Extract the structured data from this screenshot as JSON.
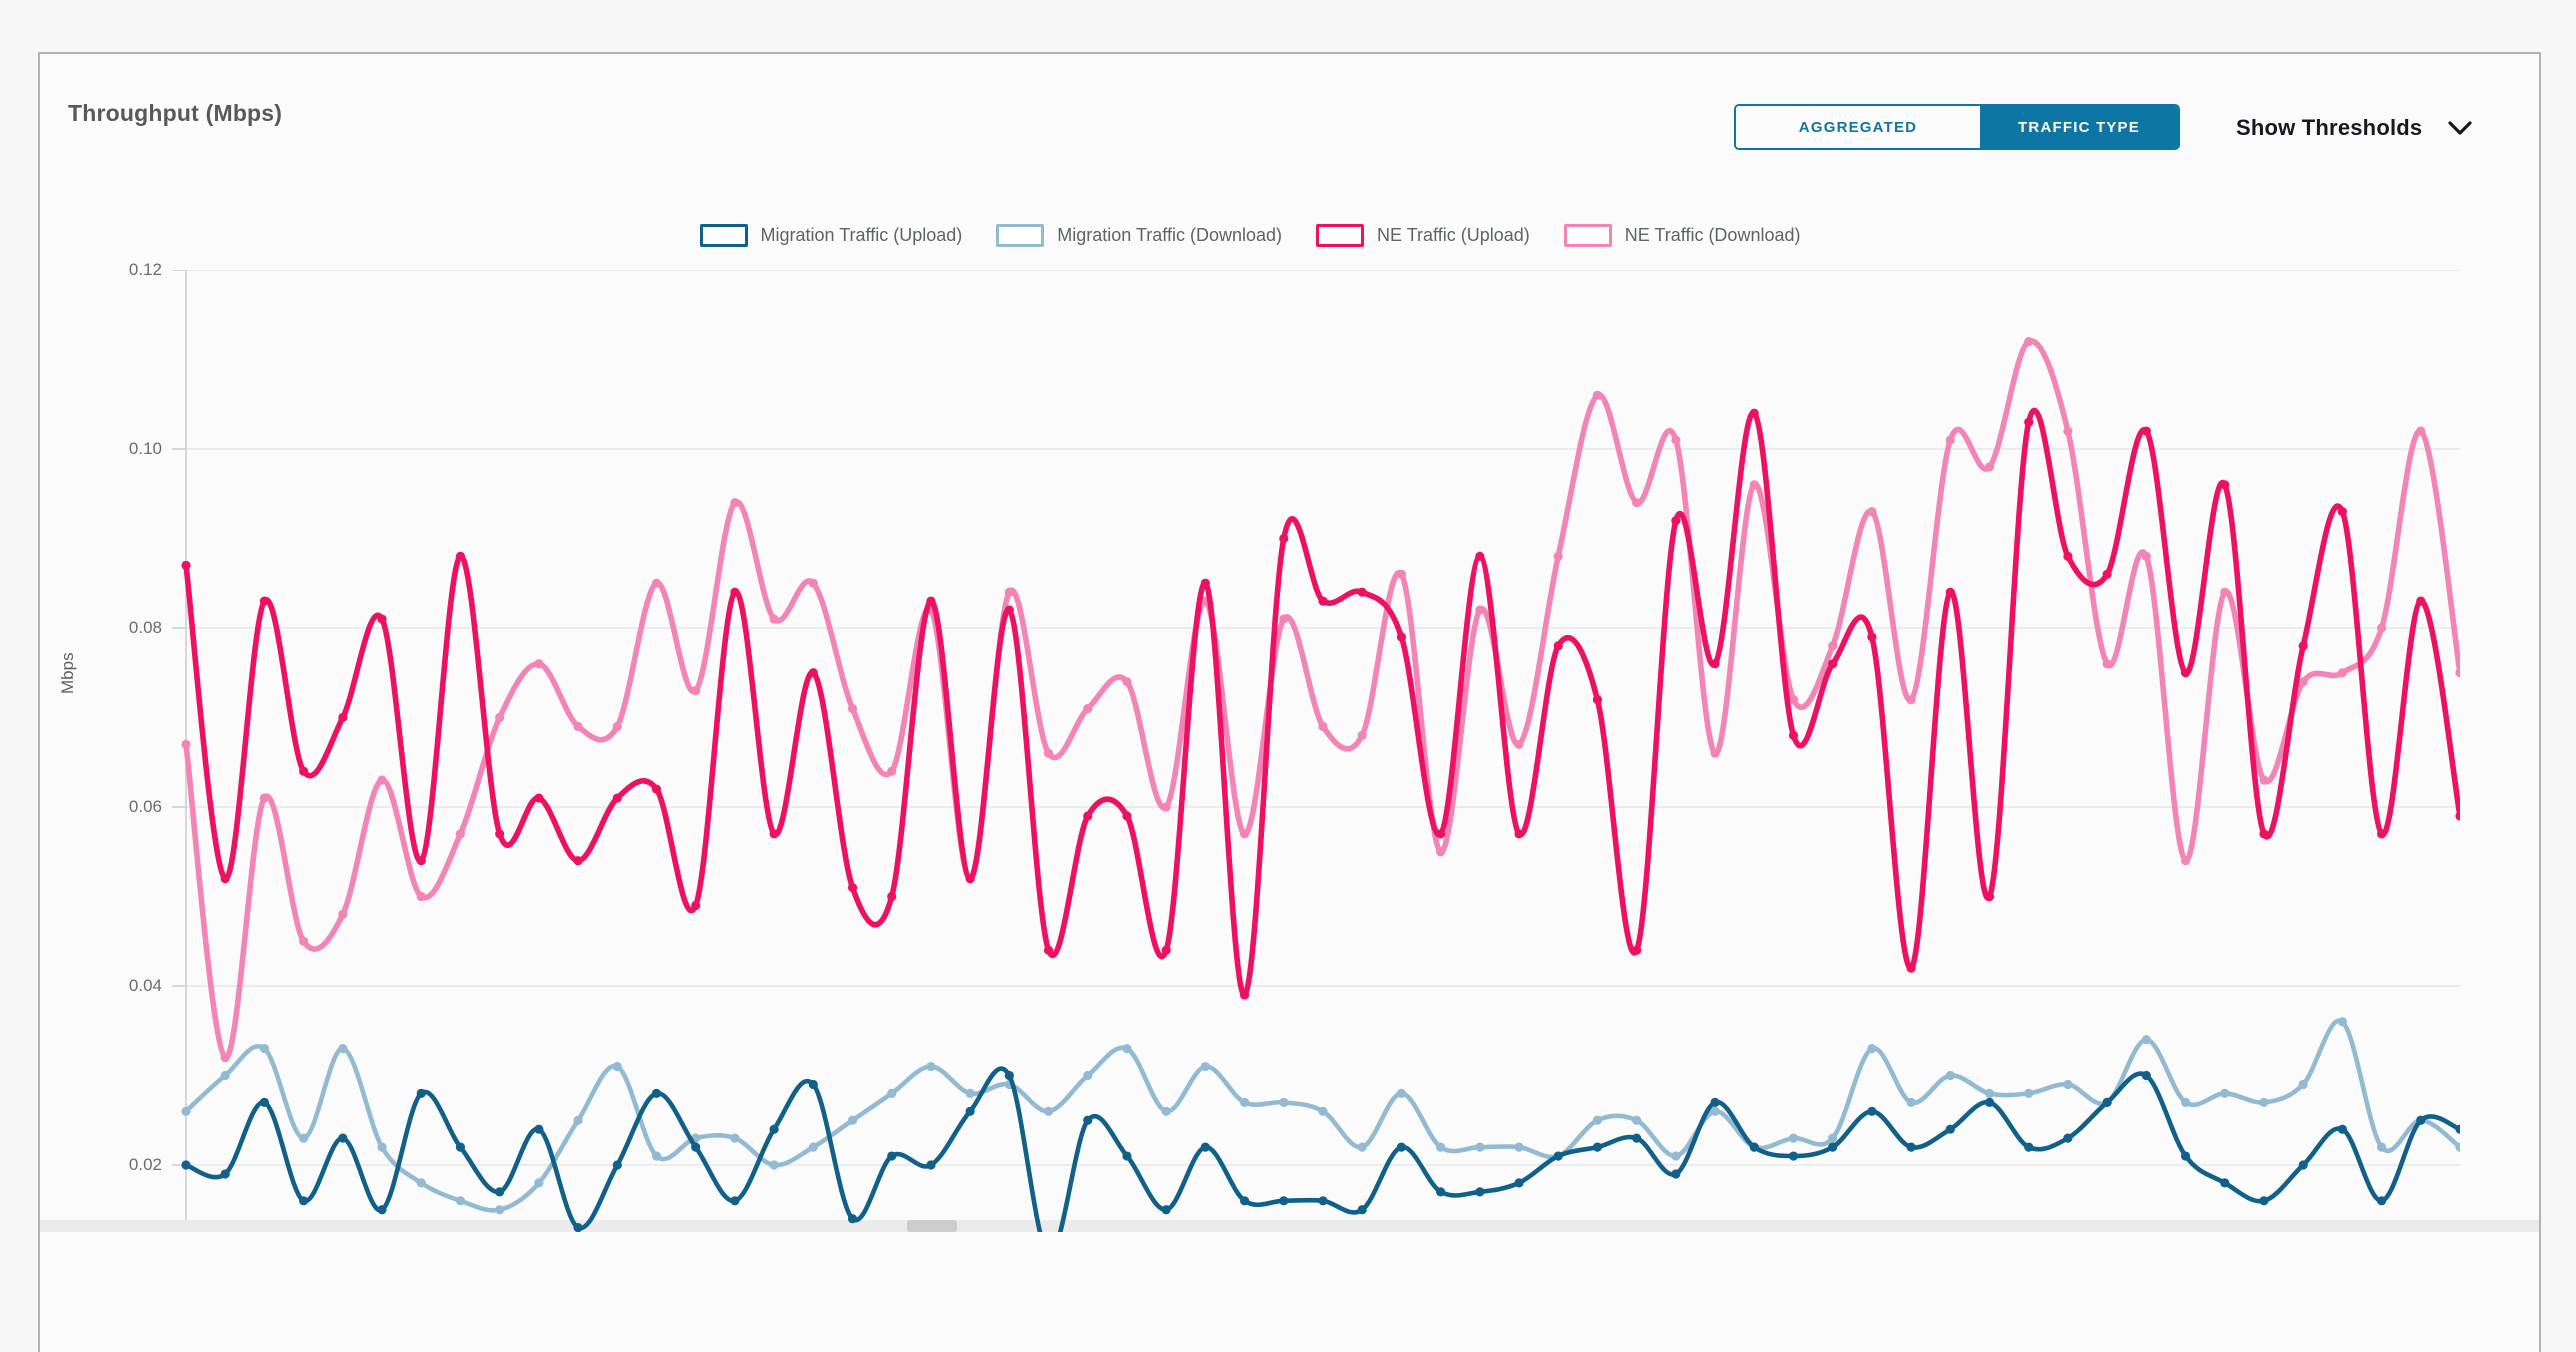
{
  "panel": {
    "title": "Throughput (Mbps)"
  },
  "toggle": {
    "options": [
      "AGGREGATED",
      "TRAFFIC TYPE"
    ],
    "selected": "TRAFFIC TYPE",
    "accent_color": "#0d76a5"
  },
  "thresholds": {
    "label": "Show Thresholds",
    "icon": "chevron-down-icon"
  },
  "chart_data": {
    "type": "line",
    "title": "Throughput (Mbps)",
    "xlabel": "",
    "ylabel": "Mbps",
    "ytick_labels": [
      "0.12",
      "0.10",
      "0.08",
      "0.06",
      "0.04",
      "0.02"
    ],
    "yticks": [
      0.12,
      0.1,
      0.08,
      0.06,
      0.04,
      0.02
    ],
    "ylim_top": 0.12,
    "grid": true,
    "legend_position": "top",
    "marker": "circle",
    "smooth": true,
    "series": [
      {
        "name": "Migration Traffic (Upload)",
        "color": "#11608a",
        "values": [
          0.02,
          0.019,
          0.027,
          0.016,
          0.023,
          0.015,
          0.028,
          0.022,
          0.017,
          0.024,
          0.013,
          0.02,
          0.028,
          0.022,
          0.016,
          0.024,
          0.029,
          0.014,
          0.021,
          0.02,
          0.026,
          0.03,
          0.01,
          0.025,
          0.021,
          0.015,
          0.022,
          0.016,
          0.016,
          0.016,
          0.015,
          0.022,
          0.017,
          0.017,
          0.018,
          0.021,
          0.022,
          0.023,
          0.019,
          0.027,
          0.022,
          0.021,
          0.022,
          0.026,
          0.022,
          0.024,
          0.027,
          0.022,
          0.023,
          0.027,
          0.03,
          0.021,
          0.018,
          0.016,
          0.02,
          0.024,
          0.016,
          0.025,
          0.024
        ]
      },
      {
        "name": "Migration Traffic (Download)",
        "color": "#92bad2",
        "values": [
          0.026,
          0.03,
          0.033,
          0.023,
          0.033,
          0.022,
          0.018,
          0.016,
          0.015,
          0.018,
          0.025,
          0.031,
          0.021,
          0.023,
          0.023,
          0.02,
          0.022,
          0.025,
          0.028,
          0.031,
          0.028,
          0.029,
          0.026,
          0.03,
          0.033,
          0.026,
          0.031,
          0.027,
          0.027,
          0.026,
          0.022,
          0.028,
          0.022,
          0.022,
          0.022,
          0.021,
          0.025,
          0.025,
          0.021,
          0.026,
          0.022,
          0.023,
          0.023,
          0.033,
          0.027,
          0.03,
          0.028,
          0.028,
          0.029,
          0.027,
          0.034,
          0.027,
          0.028,
          0.027,
          0.029,
          0.036,
          0.022,
          0.025,
          0.022
        ]
      },
      {
        "name": "NE Traffic (Upload)",
        "color": "#ed1164",
        "values": [
          0.087,
          0.052,
          0.083,
          0.064,
          0.07,
          0.081,
          0.054,
          0.088,
          0.057,
          0.061,
          0.054,
          0.061,
          0.062,
          0.049,
          0.084,
          0.057,
          0.075,
          0.051,
          0.05,
          0.083,
          0.052,
          0.082,
          0.044,
          0.059,
          0.059,
          0.044,
          0.085,
          0.039,
          0.09,
          0.083,
          0.084,
          0.079,
          0.057,
          0.088,
          0.057,
          0.078,
          0.072,
          0.044,
          0.092,
          0.076,
          0.104,
          0.068,
          0.076,
          0.079,
          0.042,
          0.084,
          0.05,
          0.103,
          0.088,
          0.086,
          0.102,
          0.075,
          0.096,
          0.057,
          0.078,
          0.093,
          0.057,
          0.083,
          0.059
        ]
      },
      {
        "name": "NE Traffic (Download)",
        "color": "#f285b5",
        "values": [
          0.067,
          0.032,
          0.061,
          0.045,
          0.048,
          0.063,
          0.05,
          0.057,
          0.07,
          0.076,
          0.069,
          0.069,
          0.085,
          0.073,
          0.094,
          0.081,
          0.085,
          0.071,
          0.064,
          0.082,
          0.052,
          0.084,
          0.066,
          0.071,
          0.074,
          0.06,
          0.083,
          0.057,
          0.081,
          0.069,
          0.068,
          0.086,
          0.055,
          0.082,
          0.067,
          0.088,
          0.106,
          0.094,
          0.101,
          0.066,
          0.096,
          0.072,
          0.078,
          0.093,
          0.072,
          0.101,
          0.098,
          0.112,
          0.102,
          0.076,
          0.088,
          0.054,
          0.084,
          0.063,
          0.074,
          0.075,
          0.08,
          0.102,
          0.075
        ]
      }
    ]
  },
  "colors": {
    "card_border": "#aeb4b7",
    "gridline": "#e8e8e8",
    "axis": "#cfcfcf",
    "scroll_track": "#ebebeb",
    "scroll_thumb": "#cdcdcd"
  }
}
